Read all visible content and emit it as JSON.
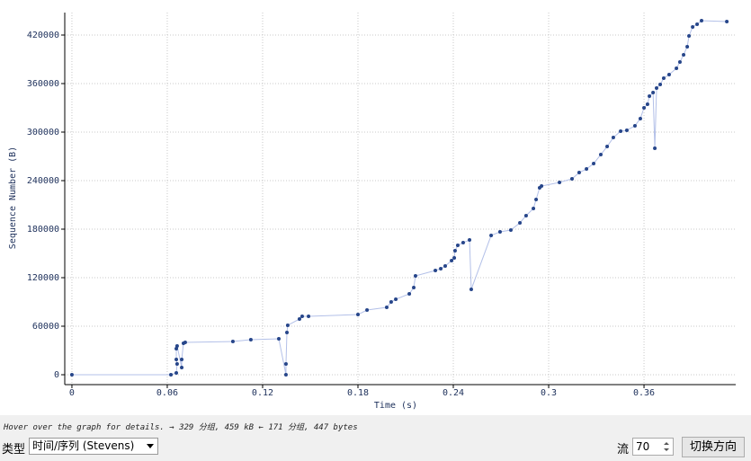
{
  "chart_data": {
    "type": "scatter",
    "xlabel": "Time (s)",
    "ylabel": "Sequence Number (B)",
    "xlim": [
      -0.0045,
      0.4177
    ],
    "ylim": [
      -12222,
      447778
    ],
    "xticks": [
      0,
      0.06,
      0.12,
      0.18,
      0.24,
      0.3,
      0.36
    ],
    "yticks": [
      0,
      60000,
      120000,
      180000,
      240000,
      300000,
      360000,
      420000
    ],
    "grid": true,
    "series": [
      {
        "color": "#27468a",
        "line_color": "#b3c0e8",
        "x": [
          0,
          0.0623,
          0.0657,
          0.0662,
          0.0657,
          0.0657,
          0.0662,
          0.0691,
          0.0691,
          0.0702,
          0.0713,
          0.1013,
          0.1126,
          0.1302,
          0.1347,
          0.1347,
          0.1353,
          0.1358,
          0.1432,
          0.1449,
          0.1489,
          0.18,
          0.1857,
          0.1981,
          0.2009,
          0.2038,
          0.2123,
          0.2151,
          0.2162,
          0.2287,
          0.2321,
          0.2349,
          0.2389,
          0.2406,
          0.2411,
          0.2428,
          0.2462,
          0.2502,
          0.2513,
          0.2638,
          0.2694,
          0.2762,
          0.2819,
          0.2858,
          0.2904,
          0.2921,
          0.2943,
          0.2955,
          0.3068,
          0.3147,
          0.3192,
          0.3238,
          0.3283,
          0.3328,
          0.3368,
          0.3407,
          0.3453,
          0.3492,
          0.3543,
          0.3577,
          0.36,
          0.3622,
          0.3634,
          0.3657,
          0.3668,
          0.3679,
          0.3702,
          0.3724,
          0.3758,
          0.3804,
          0.3826,
          0.3849,
          0.3872,
          0.3883,
          0.3906,
          0.3934,
          0.3962,
          0.4121
        ],
        "values": [
          0,
          0,
          2200,
          13300,
          18900,
          32200,
          35600,
          8900,
          18900,
          38900,
          40000,
          41100,
          43300,
          44400,
          0,
          13300,
          52200,
          61100,
          68900,
          72200,
          72200,
          74400,
          80000,
          83300,
          90000,
          93300,
          100000,
          107800,
          122200,
          128900,
          131100,
          134400,
          141100,
          144400,
          153300,
          160000,
          163300,
          166700,
          105600,
          172200,
          176700,
          178900,
          187800,
          196700,
          205600,
          216700,
          231100,
          233300,
          237800,
          242200,
          250000,
          254400,
          261100,
          272200,
          282200,
          293300,
          301100,
          302200,
          307800,
          316700,
          330000,
          334400,
          344400,
          348900,
          280000,
          354400,
          358900,
          366700,
          371100,
          378900,
          386700,
          395600,
          405600,
          418900,
          430000,
          433300,
          437800,
          436700
        ]
      }
    ]
  },
  "status": "Hover over the graph for details. → 329 分组, 459 kB ← 171 分组, 447 bytes",
  "controls": {
    "type_label": "类型",
    "type_value": "时间/序列 (Stevens)",
    "stream_label": "流",
    "stream_value": "70",
    "switch_button": "切换方向"
  }
}
